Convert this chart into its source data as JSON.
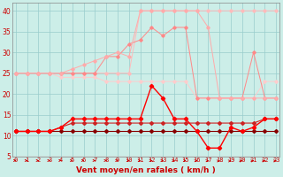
{
  "xlabel": "Vent moyen/en rafales ( km/h )",
  "x": [
    0,
    1,
    2,
    3,
    4,
    5,
    6,
    7,
    8,
    9,
    10,
    11,
    12,
    13,
    14,
    15,
    16,
    17,
    18,
    19,
    20,
    21,
    22,
    23
  ],
  "line_lightest": [
    25,
    25,
    25,
    25,
    24,
    24,
    24,
    24,
    23,
    23,
    23,
    23,
    23,
    23,
    23,
    23,
    19,
    19,
    19,
    19,
    19,
    19,
    23,
    23
  ],
  "line_light1": [
    25,
    25,
    25,
    25,
    25,
    26,
    27,
    28,
    29,
    30,
    29,
    40,
    40,
    40,
    40,
    40,
    40,
    36,
    19,
    19,
    19,
    19,
    19,
    19
  ],
  "line_light2": [
    25,
    25,
    25,
    25,
    25,
    25,
    25,
    25,
    29,
    29,
    32,
    33,
    36,
    34,
    36,
    36,
    19,
    19,
    19,
    19,
    19,
    30,
    19,
    19
  ],
  "line_med": [
    25,
    25,
    25,
    25,
    25,
    25,
    25,
    25,
    25,
    25,
    25,
    40,
    40,
    40,
    40,
    40,
    40,
    40,
    40,
    40,
    40,
    40,
    40,
    40
  ],
  "line_dark1": [
    11,
    11,
    11,
    11,
    12,
    14,
    14,
    14,
    14,
    14,
    14,
    14,
    22,
    19,
    14,
    14,
    11,
    7,
    7,
    12,
    11,
    12,
    14,
    14
  ],
  "line_dark2": [
    11,
    11,
    11,
    11,
    12,
    13,
    13,
    13,
    13,
    13,
    13,
    13,
    13,
    13,
    13,
    13,
    13,
    13,
    13,
    13,
    13,
    13,
    14,
    14
  ],
  "line_darkest": [
    11,
    11,
    11,
    11,
    11,
    11,
    11,
    11,
    11,
    11,
    11,
    11,
    11,
    11,
    11,
    11,
    11,
    11,
    11,
    11,
    11,
    11,
    11,
    11
  ],
  "colors": {
    "line_lightest": "#ffcccc",
    "line_light1": "#ffaaaa",
    "line_light2": "#ff8888",
    "line_med": "#ffbbbb",
    "line_dark1": "#ff0000",
    "line_dark2": "#cc2222",
    "line_darkest": "#880000"
  },
  "arrow_angles": [
    0,
    0,
    0,
    0,
    0,
    0,
    0,
    0,
    0,
    0,
    0,
    0,
    0,
    0,
    0,
    0,
    20,
    20,
    30,
    30,
    30,
    30,
    30,
    30
  ],
  "bg_color": "#cceee8",
  "grid_color": "#99cccc",
  "ylim": [
    5,
    42
  ],
  "yticks": [
    5,
    10,
    15,
    20,
    25,
    30,
    35,
    40
  ],
  "xlim": [
    -0.3,
    23.3
  ]
}
